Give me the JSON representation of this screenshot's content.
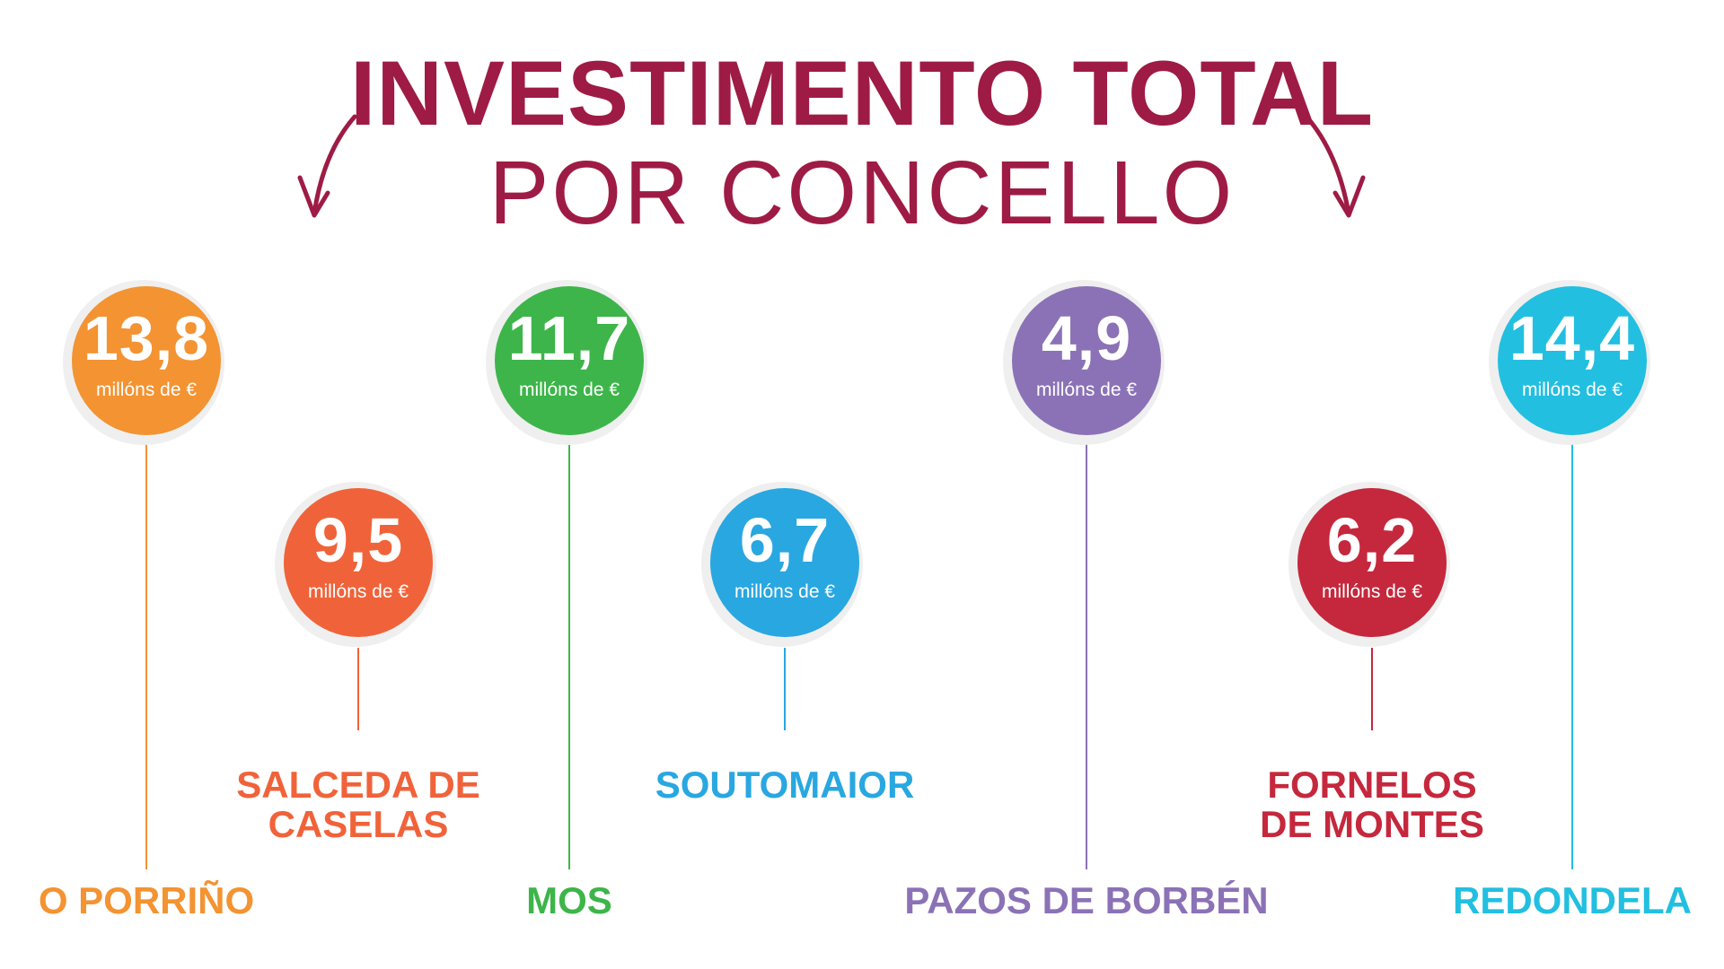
{
  "title": {
    "line1": "INVESTIMENTO TOTAL",
    "line2": "POR CONCELLO"
  },
  "unit": "millóns de €",
  "colors": {
    "title": "#9e1b45"
  },
  "municipalities": [
    {
      "name": "O PORRIÑO",
      "value": "13,8",
      "color": "#f39332"
    },
    {
      "name_line1": "SALCEDA DE",
      "name_line2": "CASELAS",
      "value": "9,5",
      "color": "#f0633a"
    },
    {
      "name": "MOS",
      "value": "11,7",
      "color": "#3db54a"
    },
    {
      "name": "SOUTOMAIOR",
      "value": "6,7",
      "color": "#29a7e1"
    },
    {
      "name": "PAZOS DE BORBÉN",
      "value": "4,9",
      "color": "#8b72b6"
    },
    {
      "name_line1": "FORNELOS",
      "name_line2": "DE MONTES",
      "value": "6,2",
      "color": "#c5283d"
    },
    {
      "name": "REDONDELA",
      "value": "14,4",
      "color": "#22bfe0"
    }
  ]
}
